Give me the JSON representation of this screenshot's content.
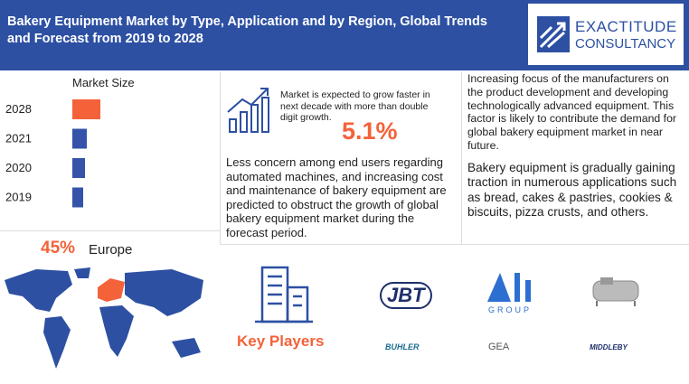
{
  "header": {
    "title": "Bakery Equipment Market by Type, Application and by Region, Global Trends and Forecast from 2019 to 2028",
    "logo": {
      "name": "EXACTITUDE",
      "tagline": "CONSULTANCY"
    }
  },
  "market_size": {
    "title": "Market Size",
    "categories": [
      "2028",
      "2021",
      "2020",
      "2019"
    ],
    "values": [
      31,
      16,
      14,
      12
    ],
    "colors": [
      "#f4623a",
      "#3553a8",
      "#3553a8",
      "#3553a8"
    ]
  },
  "growth": {
    "text": "Market is expected to grow faster in next decade with more than double digit growth.",
    "cagr": "5.1%"
  },
  "restraint": "Less concern among end users regarding automated machines, and increasing cost and maintenance of bakery equipment are predicted to obstruct the growth of global bakery equipment market during the forecast period.",
  "drivers": "Increasing focus of the manufacturers on the product development and developing technologically advanced equipment. This factor is likely to contribute the demand for global bakery equipment market in near future.",
  "opportunity": "Bakery equipment is gradually gaining traction in numerous applications such as bread, cakes & pastries, cookies & biscuits, pizza crusts, and others.",
  "region": {
    "share": "45%",
    "name": "Europe"
  },
  "key_players": {
    "title": "Key Players",
    "logos": [
      "JBT",
      "GROUP",
      "BUHLER",
      "GEA",
      "MIDDLEBY"
    ]
  }
}
